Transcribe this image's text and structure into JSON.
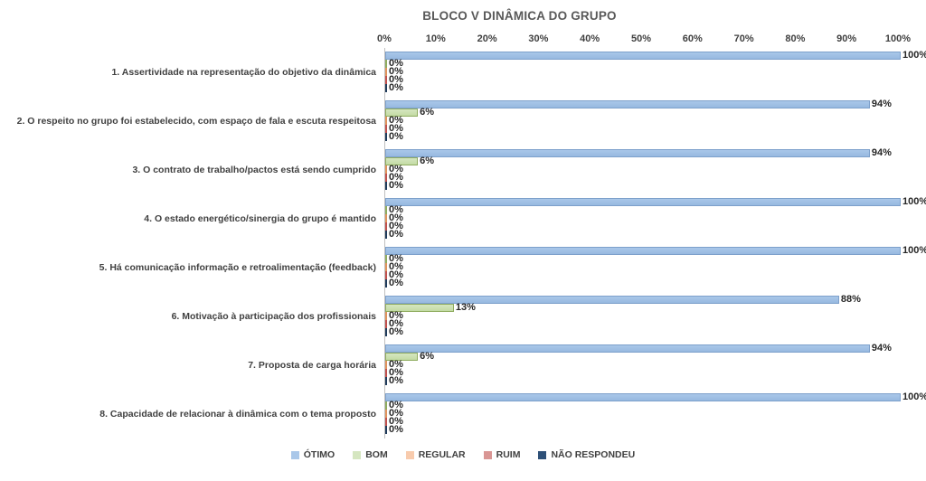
{
  "chart_data": {
    "type": "bar",
    "orientation": "horizontal",
    "title": "BLOCO V DINÂMICA DO GRUPO",
    "xlabel": "",
    "ylabel": "",
    "xlim": [
      0,
      100
    ],
    "grid": false,
    "legend_position": "bottom",
    "value_suffix": "%",
    "x_ticks": [
      "0%",
      "10%",
      "20%",
      "30%",
      "40%",
      "50%",
      "60%",
      "70%",
      "80%",
      "90%",
      "100%"
    ],
    "categories": [
      "1. Assertividade na representação do objetivo da dinâmica",
      "2. O respeito no grupo foi estabelecido, com espaço de fala e escuta respeitosa",
      "3. O contrato de trabalho/pactos está sendo cumprido",
      "4. O estado energético/sinergia do grupo é mantido",
      "5. Há comunicação informação e retroalimentação (feedback)",
      "6. Motivação à participação dos profissionais",
      "7. Proposta de carga horária",
      "8. Capacidade de relacionar à dinâmica com o tema proposto"
    ],
    "series": [
      {
        "name": "ÓTIMO",
        "fill": "#A9C7E9",
        "fill2": "#97B9E0",
        "border": "#7DA0CB",
        "zero_color": "#7DA0CB",
        "values": [
          100,
          94,
          94,
          100,
          100,
          88,
          94,
          100
        ]
      },
      {
        "name": "BOM",
        "fill": "#D5E6C0",
        "fill2": "#C3DBA4",
        "border": "#8FAC5F",
        "zero_color": "#8FAC5F",
        "values": [
          0,
          6,
          6,
          0,
          0,
          13,
          6,
          0
        ]
      },
      {
        "name": "REGULAR",
        "fill": "#F8CBAD",
        "fill2": "#F5BD95",
        "border": "#E0935C",
        "zero_color": "#E0935C",
        "values": [
          0,
          0,
          0,
          0,
          0,
          0,
          0,
          0
        ]
      },
      {
        "name": "RUIM",
        "fill": "#D99694",
        "fill2": "#D08885",
        "border": "#B66360",
        "zero_color": "#C0504D",
        "values": [
          0,
          0,
          0,
          0,
          0,
          0,
          0,
          0
        ]
      },
      {
        "name": "NÃO RESPONDEU",
        "fill": "#2E5078",
        "fill2": "#27456A",
        "border": "#1F3A5A",
        "zero_color": "#1F3A5A",
        "values": [
          0,
          0,
          0,
          0,
          0,
          0,
          0,
          0
        ]
      }
    ]
  }
}
